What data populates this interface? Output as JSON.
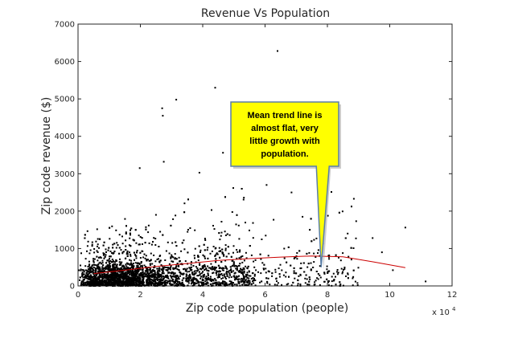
{
  "chart_data": {
    "type": "scatter",
    "title": "Revenue Vs Population",
    "xlabel": "Zip code population (people)",
    "ylabel": "Zip code revenue ($)",
    "x_multiplier_label": "x 10",
    "x_multiplier_exponent": "4",
    "xlim": [
      0,
      120000
    ],
    "ylim": [
      0,
      7000
    ],
    "x_ticks": [
      0,
      20000,
      40000,
      60000,
      80000,
      100000,
      120000
    ],
    "x_tick_labels": [
      "0",
      "2",
      "4",
      "6",
      "8",
      "10",
      "12"
    ],
    "y_ticks": [
      0,
      1000,
      2000,
      3000,
      4000,
      5000,
      6000,
      7000
    ],
    "y_tick_labels": [
      "0",
      "1000",
      "2000",
      "3000",
      "4000",
      "5000",
      "6000",
      "7000"
    ],
    "grid": false,
    "legend": "none",
    "point_color": "#000000",
    "trend_color": "#cc0000",
    "outliers": [
      {
        "x": 64000,
        "y": 6280
      },
      {
        "x": 44000,
        "y": 5300
      },
      {
        "x": 31500,
        "y": 4980
      },
      {
        "x": 27000,
        "y": 4750
      },
      {
        "x": 27200,
        "y": 4550
      },
      {
        "x": 46500,
        "y": 3560
      },
      {
        "x": 88500,
        "y": 2330
      },
      {
        "x": 105000,
        "y": 1560
      },
      {
        "x": 111500,
        "y": 120
      },
      {
        "x": 101000,
        "y": 420
      },
      {
        "x": 97500,
        "y": 900
      },
      {
        "x": 94500,
        "y": 1280
      },
      {
        "x": 86500,
        "y": 1400
      },
      {
        "x": 68500,
        "y": 2500
      },
      {
        "x": 60500,
        "y": 2700
      },
      {
        "x": 27500,
        "y": 3320
      },
      {
        "x": 19800,
        "y": 3150
      }
    ],
    "trend_line": {
      "x": [
        5000,
        15000,
        25000,
        35000,
        45000,
        55000,
        65000,
        75000,
        85000,
        95000,
        105000
      ],
      "y": [
        330,
        420,
        520,
        600,
        680,
        730,
        770,
        800,
        780,
        640,
        490
      ]
    },
    "annotation": {
      "lines": [
        "Mean trend line is",
        "almost flat, very",
        "little growth with",
        "population."
      ],
      "fill": "#ffff00",
      "pointer_x": 78000,
      "pointer_y": 500
    }
  }
}
